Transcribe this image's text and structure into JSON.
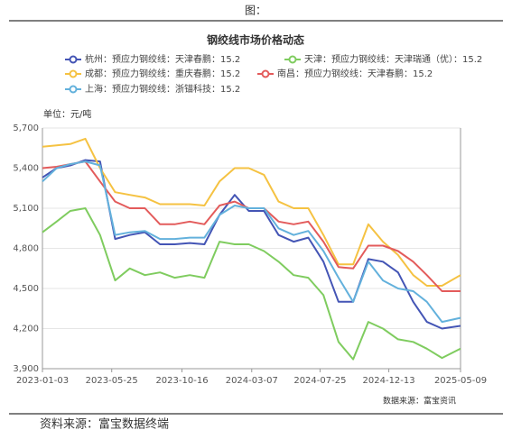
{
  "figure_label": "图：",
  "footer": "资料来源：富宝数据终端",
  "chart_data": {
    "type": "line",
    "title": "钢绞线市场价格动态",
    "y_label": "单位：元/吨",
    "source": "数据来源：富宝资讯",
    "x": [
      "2023-01-03",
      "2023-02-01",
      "2023-03-01",
      "2023-04-01",
      "2023-05-01",
      "2023-06-01",
      "2023-07-01",
      "2023-08-01",
      "2023-09-01",
      "2023-10-01",
      "2023-11-01",
      "2023-12-01",
      "2024-01-01",
      "2024-02-01",
      "2024-03-01",
      "2024-04-01",
      "2024-05-01",
      "2024-06-01",
      "2024-07-01",
      "2024-08-01",
      "2024-09-01",
      "2024-10-01",
      "2024-11-01",
      "2024-12-01",
      "2025-01-01",
      "2025-02-01",
      "2025-03-01",
      "2025-04-01",
      "2025-05-09"
    ],
    "series": [
      {
        "name": "杭州：预应力钢绞线：天津春鹏：15.2",
        "color": "#4455b5",
        "values": [
          5330,
          5400,
          5420,
          5460,
          5450,
          4870,
          4900,
          4920,
          4830,
          4830,
          4840,
          4830,
          5050,
          5200,
          5080,
          5080,
          4900,
          4850,
          4880,
          4700,
          4400,
          4400,
          4720,
          4700,
          4620,
          4400,
          4250,
          4200,
          4220
        ]
      },
      {
        "name": "天津：预应力钢绞线：天津瑞通（优）：15.2",
        "color": "#7fcc5f",
        "values": [
          4920,
          5000,
          5080,
          5100,
          4900,
          4560,
          4650,
          4600,
          4620,
          4580,
          4600,
          4580,
          4850,
          4830,
          4830,
          4780,
          4700,
          4600,
          4580,
          4450,
          4100,
          3970,
          4250,
          4200,
          4120,
          4100,
          4050,
          3980,
          4050
        ]
      },
      {
        "name": "成都：预应力钢绞线：重庆春鹏：15.2",
        "color": "#f5c242",
        "values": [
          5560,
          5570,
          5580,
          5620,
          5400,
          5220,
          5200,
          5180,
          5130,
          5130,
          5130,
          5120,
          5300,
          5400,
          5400,
          5350,
          5150,
          5100,
          5100,
          4900,
          4680,
          4680,
          4980,
          4850,
          4750,
          4600,
          4520,
          4520,
          4600
        ]
      },
      {
        "name": "南昌：预应力钢绞线：天津春鹏：15.2",
        "color": "#e35b5b",
        "values": [
          5400,
          5410,
          5430,
          5450,
          5300,
          5150,
          5100,
          5100,
          4980,
          4980,
          5000,
          4980,
          5120,
          5150,
          5100,
          5100,
          5000,
          4980,
          5000,
          4850,
          4660,
          4650,
          4820,
          4820,
          4780,
          4700,
          4600,
          4480,
          4480
        ]
      },
      {
        "name": "上海：预应力钢绞线：浙锚科技：15.2",
        "color": "#63b1dc",
        "values": [
          5300,
          5400,
          5430,
          5450,
          5420,
          4900,
          4920,
          4930,
          4870,
          4870,
          4880,
          4880,
          5050,
          5120,
          5100,
          5100,
          4950,
          4900,
          4930,
          4780,
          4580,
          4400,
          4700,
          4560,
          4500,
          4480,
          4400,
          4250,
          4280
        ]
      }
    ],
    "xlim": [
      "2023-01-03",
      "2025-05-09"
    ],
    "xticks": [
      "2023-01-03",
      "2023-05-25",
      "2023-10-16",
      "2024-03-07",
      "2024-07-25",
      "2024-12-13",
      "2025-05-09"
    ],
    "ylim": [
      3900,
      5700
    ],
    "yticks": [
      {
        "value": 3900,
        "label": "3,900"
      },
      {
        "value": 4200,
        "label": "4,200"
      },
      {
        "value": 4500,
        "label": "4,500"
      },
      {
        "value": 4800,
        "label": "4,800"
      },
      {
        "value": 5100,
        "label": "5,100"
      },
      {
        "value": 5400,
        "label": "5,400"
      },
      {
        "value": 5700,
        "label": "5,700"
      }
    ],
    "grid": true
  }
}
